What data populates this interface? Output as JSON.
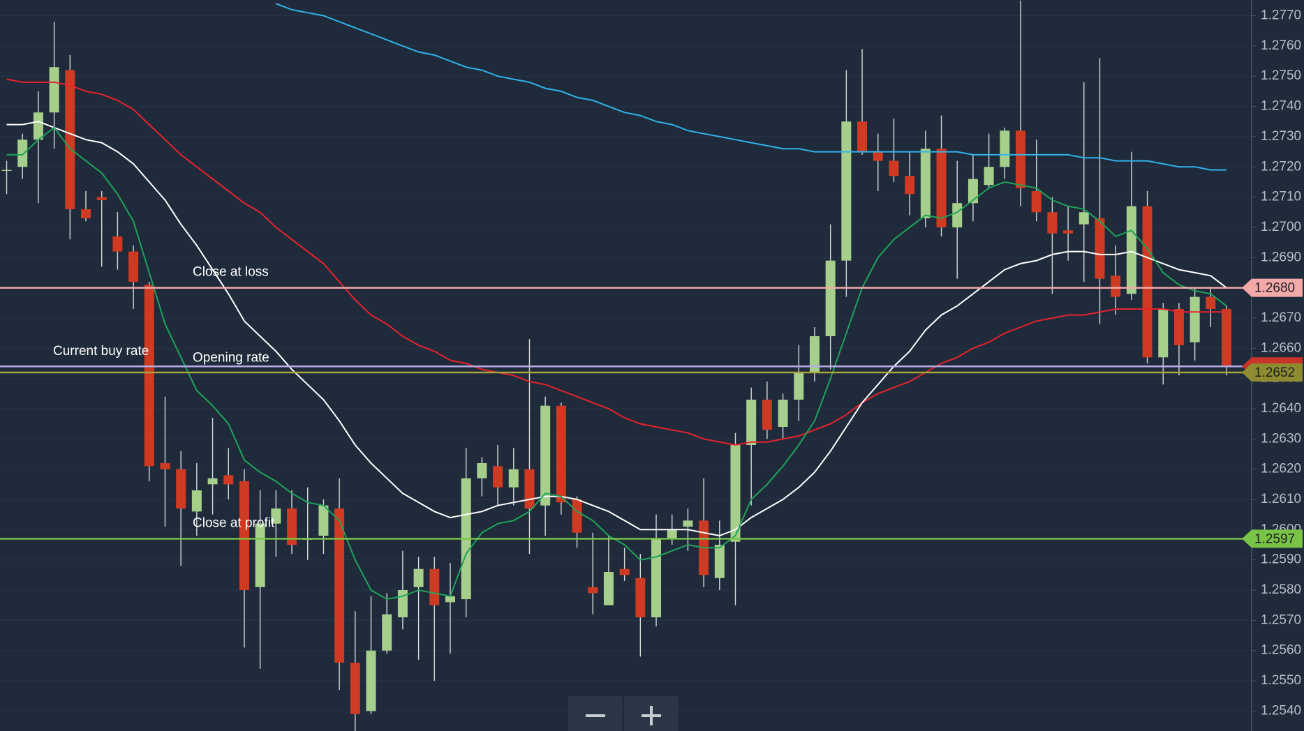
{
  "chart_data": {
    "type": "candlestick",
    "open": [
      1.2719,
      1.272,
      1.2729,
      1.2738,
      1.2752,
      1.2706,
      1.271,
      1.2697,
      1.2692,
      1.2681,
      1.2622,
      1.262,
      1.2606,
      1.2615,
      1.2618,
      1.2616,
      1.2581,
      1.2602,
      1.2607,
      1.2597,
      1.2598,
      1.2607,
      1.2556,
      1.254,
      1.256,
      1.2571,
      1.2581,
      1.2587,
      1.2576,
      1.2577,
      1.2617,
      1.2621,
      1.2614,
      1.262,
      1.2608,
      1.2641,
      1.261,
      1.2581,
      1.2575,
      1.2587,
      1.2584,
      1.2571,
      1.2597,
      1.2601,
      1.2603,
      1.2584,
      1.2596,
      1.2628,
      1.2643,
      1.2634,
      1.2643,
      1.2652,
      1.2664,
      1.2689,
      1.2735,
      1.2725,
      1.2722,
      1.2717,
      1.2703,
      1.2726,
      1.27,
      1.2708,
      1.2714,
      1.272,
      1.2732,
      1.2712,
      1.2705,
      1.2699,
      1.2701,
      1.2703,
      1.2684,
      1.2678,
      1.2707,
      1.2657,
      1.2673,
      1.2662,
      1.2677,
      1.2673
    ],
    "high": [
      1.2722,
      1.2731,
      1.2745,
      1.2768,
      1.2757,
      1.2712,
      1.2712,
      1.2705,
      1.2694,
      1.2682,
      1.2644,
      1.2626,
      1.2622,
      1.2637,
      1.2627,
      1.262,
      1.2613,
      1.2613,
      1.2613,
      1.2614,
      1.261,
      1.2617,
      1.2573,
      1.2578,
      1.2579,
      1.2593,
      1.2591,
      1.2591,
      1.2589,
      1.2627,
      1.2624,
      1.2628,
      1.2627,
      1.2663,
      1.2644,
      1.2642,
      1.2611,
      1.2599,
      1.2598,
      1.2594,
      1.2592,
      1.2605,
      1.2605,
      1.2607,
      1.2617,
      1.2603,
      1.2632,
      1.2647,
      1.2649,
      1.2645,
      1.2661,
      1.2667,
      1.2701,
      1.2752,
      1.2759,
      1.2731,
      1.2736,
      1.2725,
      1.2732,
      1.2737,
      1.2722,
      1.2724,
      1.2731,
      1.2733,
      1.2775,
      1.2729,
      1.271,
      1.2707,
      1.2748,
      1.2756,
      1.2694,
      1.2725,
      1.2712,
      1.2675,
      1.2675,
      1.268,
      1.268,
      1.2674
    ],
    "low": [
      1.2711,
      1.2716,
      1.2708,
      1.2726,
      1.2696,
      1.2702,
      1.2687,
      1.2686,
      1.2673,
      1.2616,
      1.2601,
      1.2588,
      1.2598,
      1.2605,
      1.261,
      1.2561,
      1.2554,
      1.2591,
      1.2592,
      1.259,
      1.2592,
      1.2547,
      1.2533,
      1.2539,
      1.2559,
      1.2567,
      1.2557,
      1.255,
      1.2559,
      1.2571,
      1.2611,
      1.2608,
      1.2608,
      1.2592,
      1.2598,
      1.2605,
      1.2594,
      1.2572,
      1.2575,
      1.2583,
      1.2558,
      1.2568,
      1.2595,
      1.2593,
      1.2581,
      1.258,
      1.2575,
      1.2608,
      1.263,
      1.263,
      1.2636,
      1.2649,
      1.2653,
      1.2677,
      1.2724,
      1.2712,
      1.2715,
      1.2704,
      1.27,
      1.2697,
      1.2683,
      1.2702,
      1.2713,
      1.2716,
      1.2707,
      1.2702,
      1.2678,
      1.2689,
      1.2682,
      1.2668,
      1.2671,
      1.2676,
      1.2655,
      1.2648,
      1.2651,
      1.2656,
      1.2667,
      1.2651
    ],
    "close": [
      1.2719,
      1.2729,
      1.2738,
      1.2753,
      1.2706,
      1.2703,
      1.2709,
      1.2692,
      1.2682,
      1.2621,
      1.262,
      1.2607,
      1.2613,
      1.2617,
      1.2615,
      1.258,
      1.2602,
      1.2607,
      1.2595,
      1.2597,
      1.2608,
      1.2556,
      1.2539,
      1.256,
      1.2572,
      1.258,
      1.2587,
      1.2575,
      1.2578,
      1.2617,
      1.2622,
      1.2614,
      1.262,
      1.2607,
      1.2641,
      1.2609,
      1.2599,
      1.2579,
      1.2586,
      1.2585,
      1.2571,
      1.2597,
      1.26,
      1.2603,
      1.2585,
      1.2595,
      1.2628,
      1.2643,
      1.2633,
      1.2643,
      1.2652,
      1.2664,
      1.2689,
      1.2735,
      1.2725,
      1.2722,
      1.2717,
      1.2711,
      1.2726,
      1.27,
      1.2708,
      1.2716,
      1.272,
      1.2732,
      1.2713,
      1.2705,
      1.2698,
      1.2698,
      1.2705,
      1.2683,
      1.2677,
      1.2707,
      1.2657,
      1.2673,
      1.2661,
      1.2677,
      1.2673,
      1.2654
    ],
    "up_color": "#a6cf8c",
    "down_color": "#cf3a22",
    "moving_averages": [
      {
        "color": "#2fb3ea",
        "values": [
          null,
          null,
          null,
          null,
          null,
          null,
          null,
          null,
          null,
          null,
          null,
          null,
          null,
          null,
          null,
          null,
          null,
          1.2774,
          1.2772,
          1.2771,
          1.277,
          1.2768,
          1.2766,
          1.2764,
          1.2762,
          1.276,
          1.2758,
          1.2757,
          1.2755,
          1.2753,
          1.2752,
          1.275,
          1.2749,
          1.2748,
          1.2746,
          1.2745,
          1.2743,
          1.2742,
          1.274,
          1.2738,
          1.2737,
          1.2735,
          1.2734,
          1.2732,
          1.2731,
          1.273,
          1.2729,
          1.2728,
          1.2727,
          1.2726,
          1.2726,
          1.2725,
          1.2725,
          1.2725,
          1.2725,
          1.2725,
          1.2725,
          1.2725,
          1.2725,
          1.2725,
          1.2725,
          1.2724,
          1.2724,
          1.2724,
          1.2724,
          1.2724,
          1.2724,
          1.2724,
          1.2723,
          1.2723,
          1.2722,
          1.2722,
          1.2722,
          1.2721,
          1.272,
          1.272,
          1.2719,
          1.2719
        ]
      },
      {
        "color": "#e8232e",
        "values": [
          1.2749,
          1.2748,
          1.2748,
          1.2748,
          1.2747,
          1.2745,
          1.2744,
          1.2742,
          1.2739,
          1.2734,
          1.2729,
          1.2724,
          1.272,
          1.2716,
          1.2712,
          1.2708,
          1.2705,
          1.27,
          1.2696,
          1.2692,
          1.2688,
          1.2682,
          1.2676,
          1.2671,
          1.2668,
          1.2664,
          1.2661,
          1.2659,
          1.2656,
          1.2655,
          1.2653,
          1.2652,
          1.2651,
          1.2649,
          1.2648,
          1.2646,
          1.2644,
          1.2642,
          1.264,
          1.2637,
          1.2635,
          1.2634,
          1.2633,
          1.2632,
          1.263,
          1.2629,
          1.2628,
          1.2629,
          1.2629,
          1.263,
          1.2631,
          1.2633,
          1.2635,
          1.2638,
          1.2642,
          1.2645,
          1.2647,
          1.2649,
          1.2652,
          1.2655,
          1.2657,
          1.266,
          1.2662,
          1.2665,
          1.2667,
          1.2669,
          1.267,
          1.2671,
          1.2671,
          1.2672,
          1.2673,
          1.2673,
          1.2673,
          1.2673,
          1.2672,
          1.2672,
          1.2672,
          1.2672
        ]
      },
      {
        "color": "#ffffff",
        "values": [
          1.2734,
          1.2734,
          1.2735,
          1.2733,
          1.2731,
          1.2729,
          1.2728,
          1.2725,
          1.2721,
          1.2715,
          1.2709,
          1.2701,
          1.2694,
          1.2686,
          1.2678,
          1.2669,
          1.2664,
          1.2659,
          1.2653,
          1.2648,
          1.2643,
          1.2636,
          1.2628,
          1.2622,
          1.2617,
          1.2612,
          1.2609,
          1.2606,
          1.2604,
          1.2605,
          1.2606,
          1.2608,
          1.2609,
          1.261,
          1.2611,
          1.2611,
          1.261,
          1.2608,
          1.2606,
          1.2603,
          1.26,
          1.26,
          1.26,
          1.26,
          1.2599,
          1.2598,
          1.26,
          1.2604,
          1.2607,
          1.261,
          1.2614,
          1.2619,
          1.2626,
          1.2634,
          1.2642,
          1.2648,
          1.2654,
          1.2659,
          1.2666,
          1.2671,
          1.2674,
          1.2678,
          1.2682,
          1.2686,
          1.2688,
          1.2689,
          1.2691,
          1.2692,
          1.2692,
          1.2691,
          1.2691,
          1.2692,
          1.269,
          1.2688,
          1.2686,
          1.2685,
          1.2684,
          1.268
        ]
      },
      {
        "color": "#1fa35a",
        "values": [
          1.2724,
          1.2724,
          1.2729,
          1.2733,
          1.2726,
          1.2722,
          1.2718,
          1.2711,
          1.2702,
          1.2685,
          1.2668,
          1.2657,
          1.2646,
          1.2641,
          1.2635,
          1.2623,
          1.2619,
          1.2616,
          1.2612,
          1.2609,
          1.2608,
          1.2603,
          1.259,
          1.258,
          1.2577,
          1.2578,
          1.258,
          1.2579,
          1.2578,
          1.2592,
          1.2599,
          1.2602,
          1.2603,
          1.2606,
          1.2612,
          1.2611,
          1.2606,
          1.2603,
          1.2598,
          1.2595,
          1.259,
          1.2591,
          1.2593,
          1.2595,
          1.2594,
          1.2594,
          1.2598,
          1.261,
          1.2615,
          1.2621,
          1.2628,
          1.2636,
          1.265,
          1.2665,
          1.268,
          1.269,
          1.2696,
          1.27,
          1.2704,
          1.2703,
          1.2705,
          1.2709,
          1.2713,
          1.2715,
          1.2714,
          1.2713,
          1.2709,
          1.2707,
          1.2706,
          1.2702,
          1.2697,
          1.2699,
          1.2693,
          1.2685,
          1.2681,
          1.2679,
          1.2678,
          1.2674
        ]
      }
    ],
    "levels": [
      {
        "name": "Close at loss",
        "value": 1.268,
        "value_label": "1.2680",
        "color": "#f4a9a9"
      },
      {
        "name": "Opening rate",
        "value": 1.2654,
        "color": "#b8abe8",
        "tag_color": "#c8332a"
      },
      {
        "name": "Current buy rate",
        "value": 1.2652,
        "value_label": "1.2652",
        "color": "#a9a53c",
        "tag_color": "#8f8b30"
      },
      {
        "name": "Close at profit",
        "value": 1.2597,
        "value_label": "1.2597",
        "color": "#79c446"
      }
    ],
    "ylim": [
      1.25334,
      1.27752
    ],
    "yticks": [
      {
        "value": 1.254,
        "label": "1.2540"
      },
      {
        "value": 1.255,
        "label": "1.2550"
      },
      {
        "value": 1.256,
        "label": "1.2560"
      },
      {
        "value": 1.257,
        "label": "1.2570"
      },
      {
        "value": 1.258,
        "label": "1.2580"
      },
      {
        "value": 1.259,
        "label": "1.2590"
      },
      {
        "value": 1.26,
        "label": "1.2600"
      },
      {
        "value": 1.261,
        "label": "1.2610"
      },
      {
        "value": 1.262,
        "label": "1.2620"
      },
      {
        "value": 1.263,
        "label": "1.2630"
      },
      {
        "value": 1.264,
        "label": "1.2640"
      },
      {
        "value": 1.265,
        "label": "1.2650"
      },
      {
        "value": 1.266,
        "label": "1.2660"
      },
      {
        "value": 1.267,
        "label": "1.2670"
      },
      {
        "value": 1.268,
        "label": "1.2680"
      },
      {
        "value": 1.269,
        "label": "1.2690"
      },
      {
        "value": 1.27,
        "label": "1.2700"
      },
      {
        "value": 1.271,
        "label": "1.2710"
      },
      {
        "value": 1.272,
        "label": "1.2720"
      },
      {
        "value": 1.273,
        "label": "1.2730"
      },
      {
        "value": 1.274,
        "label": "1.2740"
      },
      {
        "value": 1.275,
        "label": "1.2750"
      },
      {
        "value": 1.276,
        "label": "1.2760"
      },
      {
        "value": 1.277,
        "label": "1.2770"
      }
    ],
    "grid": true
  }
}
